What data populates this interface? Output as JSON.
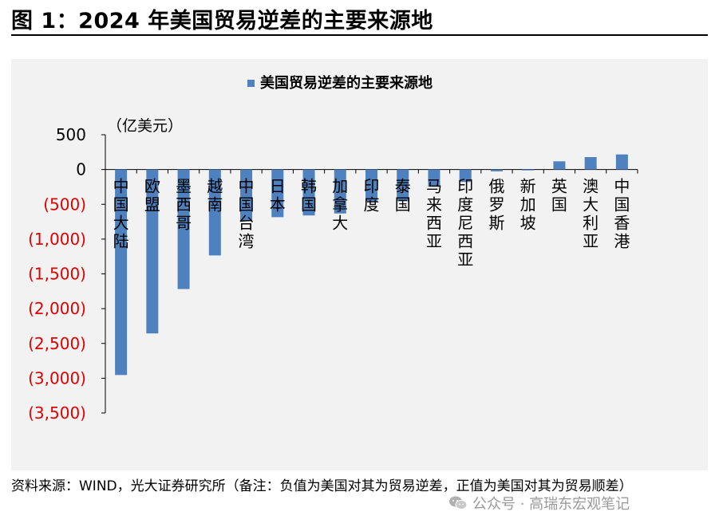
{
  "header": {
    "title": "图 1：2024 年美国贸易逆差的主要来源地"
  },
  "chart_data": {
    "type": "bar",
    "legend": "美国贸易逆差的主要来源地",
    "unit_label": "（亿美元）",
    "categories": [
      "中国大陆",
      "欧盟",
      "墨西哥",
      "越南",
      "中国台湾",
      "日本",
      "韩国",
      "加拿大",
      "印度",
      "泰国",
      "马来西亚",
      "印度尼西亚",
      "俄罗斯",
      "新加坡",
      "英国",
      "澳大利亚",
      "中国香港"
    ],
    "values": [
      -2954,
      -2356,
      -1718,
      -1235,
      -739,
      -685,
      -660,
      -632,
      -457,
      -456,
      -248,
      -179,
      -26,
      -12,
      118,
      179,
      217
    ],
    "ylim": [
      -3500,
      500
    ],
    "yticks": [
      500,
      0,
      -500,
      -1000,
      -1500,
      -2000,
      -2500,
      -3000,
      -3500
    ],
    "ytick_labels": [
      "500",
      "0",
      "(500)",
      "(1,000)",
      "(1,500)",
      "(2,000)",
      "(2,500)",
      "(3,000)",
      "(3,500)"
    ],
    "bar_color": "#4e81bd",
    "negative_tick_color": "#e00000",
    "positive_tick_color": "#000000",
    "grid": false,
    "legend_position": "top"
  },
  "footer": {
    "source": "资料来源：WIND，光大证券研究所（备注：负值为美国对其为贸易逆差，正值为美国对其为贸易顺差）",
    "watermark": "公众号 · 高瑞东宏观笔记",
    "watermark_icon": "wechat-icon"
  }
}
